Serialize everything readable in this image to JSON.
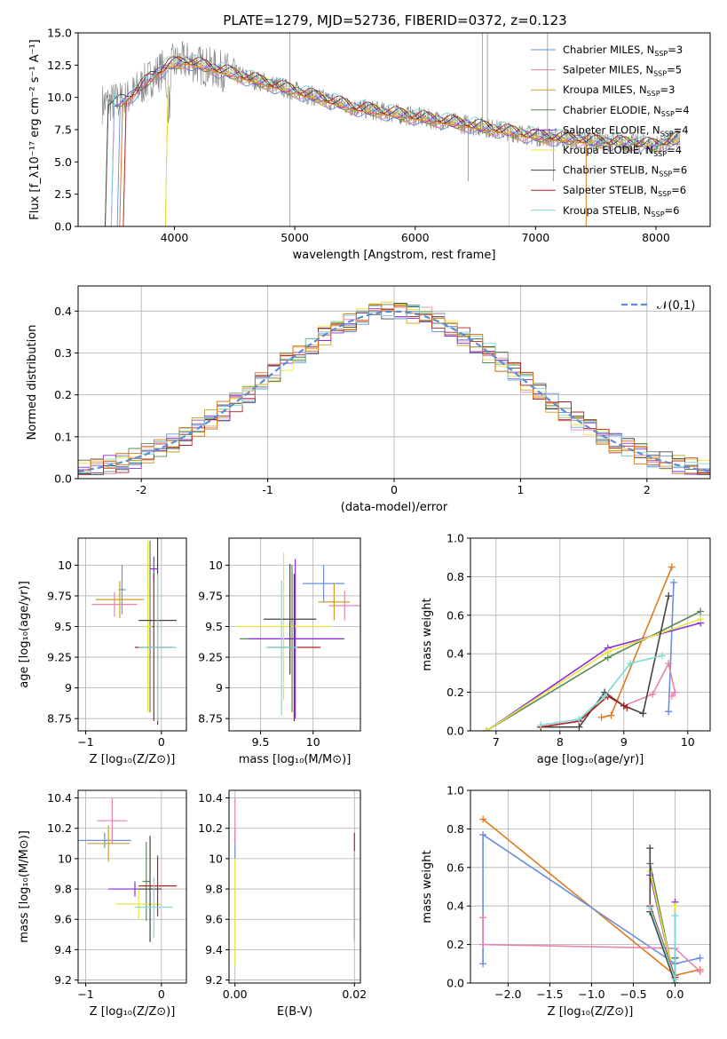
{
  "figure": {
    "title": "PLATE=1279, MJD=52736, FIBERID=0372, z=0.123"
  },
  "colors": {
    "Chabrier MILES": "#6a8fdc",
    "Salpeter MILES": "#e884b0",
    "Kroupa MILES": "#c9a227",
    "Chabrier ELODIE": "#5a8a5a",
    "Salpeter ELODIE": "#8a2be2",
    "Kroupa ELODIE": "#e6e63c",
    "Chabrier STELIB": "#444444",
    "Salpeter STELIB": "#b22222",
    "Kroupa STELIB": "#7fd8d8",
    "data": "#808080",
    "orange": "#e07a1f"
  },
  "chart_data": [
    {
      "id": "spectrum",
      "type": "line",
      "title": "PLATE=1279, MJD=52736, FIBERID=0372, z=0.123",
      "xlabel": "wavelength [Angstrom, rest frame]",
      "ylabel": "Flux [f_λ10⁻¹⁷ erg cm⁻² s⁻¹ A⁻¹]",
      "xlim": [
        3200,
        8450
      ],
      "ylim": [
        0,
        15
      ],
      "xticks": [
        4000,
        5000,
        6000,
        7000,
        8000
      ],
      "yticks": [
        0.0,
        2.5,
        5.0,
        7.5,
        10.0,
        12.5,
        15.0
      ],
      "legend_position": "top-right",
      "legend": [
        {
          "name": "Chabrier MILES",
          "nssp": "3"
        },
        {
          "name": "Salpeter MILES",
          "nssp": "5"
        },
        {
          "name": "Kroupa MILES",
          "nssp": "3"
        },
        {
          "name": "Chabrier ELODIE",
          "nssp": "4"
        },
        {
          "name": "Salpeter ELODIE",
          "nssp": "4"
        },
        {
          "name": "Kroupa ELODIE",
          "nssp": "4"
        },
        {
          "name": "Chabrier STELIB",
          "nssp": "6"
        },
        {
          "name": "Salpeter STELIB",
          "nssp": "6"
        },
        {
          "name": "Kroupa STELIB",
          "nssp": "6"
        }
      ],
      "continuum": {
        "x": [
          3400,
          3600,
          3800,
          3950,
          4100,
          4300,
          4500,
          5000,
          5500,
          6000,
          6500,
          7000,
          7500,
          8000,
          8200
        ],
        "y": [
          9.5,
          9.8,
          11.5,
          12.5,
          12.8,
          12.3,
          11.8,
          10.5,
          9.2,
          8.5,
          7.8,
          7.0,
          6.6,
          6.3,
          6.8
        ]
      }
    },
    {
      "id": "residuals",
      "type": "line",
      "xlabel": "(data-model)/error",
      "ylabel": "Normed distribution",
      "xlim": [
        -2.5,
        2.5
      ],
      "ylim": [
        0,
        0.46
      ],
      "xticks": [
        -2,
        -1,
        0,
        1,
        2
      ],
      "yticks": [
        0.0,
        0.1,
        0.2,
        0.3,
        0.4
      ],
      "legend_position": "top-right",
      "legend": [
        "𝒩(0,1)"
      ]
    },
    {
      "id": "age_vs_Z",
      "type": "scatter",
      "xlabel": "Z [log₁₀(Z/Z⊙)]",
      "ylabel": "age  [log₁₀(age/yr)]",
      "xlim": [
        -1.1,
        0.33
      ],
      "ylim": [
        8.65,
        10.22
      ],
      "xticks": [
        -1,
        0
      ],
      "yticks": [
        8.75,
        9.0,
        9.25,
        9.5,
        9.75,
        10.0
      ],
      "points": [
        {
          "model": "Chabrier MILES",
          "x": -0.52,
          "y": 9.8,
          "xerr": 0.05,
          "yerr": 0.2
        },
        {
          "model": "Salpeter MILES",
          "x": -0.62,
          "y": 9.68,
          "xerr": 0.3,
          "yerr": 0.1
        },
        {
          "model": "Kroupa MILES",
          "x": -0.55,
          "y": 9.72,
          "xerr": 0.32,
          "yerr": 0.15
        },
        {
          "model": "Chabrier ELODIE",
          "x": -0.15,
          "y": 9.5,
          "xerr": 0.05,
          "yerr": 0.7
        },
        {
          "model": "Salpeter ELODIE",
          "x": -0.1,
          "y": 9.97,
          "xerr": 0.05,
          "yerr": 0.1
        },
        {
          "model": "Kroupa ELODIE",
          "x": -0.18,
          "y": 9.5,
          "xerr": 0.05,
          "yerr": 0.7
        },
        {
          "model": "Chabrier STELIB",
          "x": -0.05,
          "y": 9.55,
          "xerr": 0.25,
          "yerr": 0.85
        },
        {
          "model": "Salpeter STELIB",
          "x": -0.1,
          "y": 9.33,
          "xerr": 0.25,
          "yerr": 0.6
        },
        {
          "model": "Kroupa STELIB",
          "x": -0.05,
          "y": 9.33,
          "xerr": 0.25,
          "yerr": 0.6
        }
      ]
    },
    {
      "id": "age_vs_mass",
      "type": "scatter",
      "xlabel": "mass [log₁₀(M/M⊙)]",
      "ylabel": "",
      "xlim": [
        9.2,
        10.45
      ],
      "ylim": [
        8.65,
        10.22
      ],
      "xticks": [
        9.5,
        10.0
      ],
      "yticks": [
        8.75,
        9.0,
        9.25,
        9.5,
        9.75,
        10.0
      ],
      "points": [
        {
          "model": "Chabrier MILES",
          "x": 10.1,
          "y": 9.85,
          "xerr": 0.2,
          "yerr": 0.15
        },
        {
          "model": "Salpeter MILES",
          "x": 10.3,
          "y": 9.67,
          "xerr": 0.15,
          "yerr": 0.12
        },
        {
          "model": "Kroupa MILES",
          "x": 10.2,
          "y": 9.7,
          "xerr": 0.15,
          "yerr": 0.15
        },
        {
          "model": "Chabrier ELODIE",
          "x": 9.8,
          "y": 9.4,
          "xerr": 0.5,
          "yerr": 0.6
        },
        {
          "model": "Salpeter ELODIE",
          "x": 9.83,
          "y": 9.4,
          "xerr": 0.45,
          "yerr": 0.65
        },
        {
          "model": "Kroupa ELODIE",
          "x": 9.72,
          "y": 9.5,
          "xerr": 0.45,
          "yerr": 0.6
        },
        {
          "model": "Chabrier STELIB",
          "x": 9.78,
          "y": 9.56,
          "xerr": 0.25,
          "yerr": 0.45
        },
        {
          "model": "Salpeter STELIB",
          "x": 9.82,
          "y": 9.33,
          "xerr": 0.25,
          "yerr": 0.6
        },
        {
          "model": "Kroupa STELIB",
          "x": 9.7,
          "y": 9.33,
          "xerr": 0.15,
          "yerr": 0.55
        }
      ]
    },
    {
      "id": "massweight_vs_age",
      "type": "line",
      "xlabel": "age  [log₁₀(age/yr)]",
      "ylabel": "mass weight",
      "xlim": [
        6.6,
        10.35
      ],
      "ylim": [
        0,
        1
      ],
      "xticks": [
        7,
        8,
        9,
        10
      ],
      "yticks": [
        0.0,
        0.2,
        0.4,
        0.6,
        0.8,
        1.0
      ],
      "series": [
        {
          "model": "Chabrier MILES",
          "x": [
            9.7,
            9.78,
            9.7
          ],
          "y": [
            0.1,
            0.77,
            0.1
          ]
        },
        {
          "model": "Salpeter MILES",
          "x": [
            9.0,
            9.45,
            9.7,
            9.8,
            9.75
          ],
          "y": [
            0.13,
            0.19,
            0.35,
            0.2,
            0.18
          ]
        },
        {
          "model": "orange",
          "x": [
            8.65,
            8.8,
            9.75
          ],
          "y": [
            0.07,
            0.08,
            0.85
          ]
        },
        {
          "model": "Chabrier ELODIE",
          "x": [
            6.85,
            8.75,
            10.2
          ],
          "y": [
            0.0,
            0.38,
            0.62
          ]
        },
        {
          "model": "Salpeter ELODIE",
          "x": [
            6.85,
            8.75,
            10.2
          ],
          "y": [
            0.0,
            0.43,
            0.56
          ]
        },
        {
          "model": "Kroupa ELODIE",
          "x": [
            6.85,
            8.75,
            10.2
          ],
          "y": [
            0.0,
            0.41,
            0.58
          ]
        },
        {
          "model": "Chabrier STELIB",
          "x": [
            7.7,
            8.3,
            8.7,
            9.0,
            9.3,
            9.7
          ],
          "y": [
            0.02,
            0.02,
            0.2,
            0.13,
            0.09,
            0.7
          ]
        },
        {
          "model": "Salpeter STELIB",
          "x": [
            7.7,
            8.3,
            8.75,
            9.05
          ],
          "y": [
            0.02,
            0.05,
            0.18,
            0.12
          ]
        },
        {
          "model": "Kroupa STELIB",
          "x": [
            7.7,
            8.3,
            8.7,
            9.1,
            9.6
          ],
          "y": [
            0.03,
            0.06,
            0.18,
            0.35,
            0.39
          ]
        }
      ]
    },
    {
      "id": "mass_vs_Z",
      "type": "scatter",
      "xlabel": "Z [log₁₀(Z/Z⊙)]",
      "ylabel": "mass [log₁₀(M/M⊙)]",
      "xlim": [
        -1.1,
        0.33
      ],
      "ylim": [
        9.18,
        10.45
      ],
      "xticks": [
        -1,
        0
      ],
      "yticks": [
        9.2,
        9.4,
        9.6,
        9.8,
        10.0,
        10.2,
        10.4
      ],
      "points": [
        {
          "model": "Chabrier MILES",
          "x": -0.75,
          "y": 10.12,
          "xerr": 0.35,
          "yerr": 0.05
        },
        {
          "model": "Salpeter MILES",
          "x": -0.65,
          "y": 10.25,
          "xerr": 0.2,
          "yerr": 0.15
        },
        {
          "model": "Kroupa MILES",
          "x": -0.7,
          "y": 10.1,
          "xerr": 0.28,
          "yerr": 0.12
        },
        {
          "model": "Chabrier ELODIE",
          "x": -0.2,
          "y": 9.85,
          "xerr": 0.05,
          "yerr": 0.26
        },
        {
          "model": "Salpeter ELODIE",
          "x": -0.35,
          "y": 9.8,
          "xerr": 0.35,
          "yerr": 0.05
        },
        {
          "model": "Kroupa ELODIE",
          "x": -0.3,
          "y": 9.7,
          "xerr": 0.3,
          "yerr": 0.1
        },
        {
          "model": "Chabrier STELIB",
          "x": -0.15,
          "y": 9.8,
          "xerr": 0.15,
          "yerr": 0.35
        },
        {
          "model": "Salpeter STELIB",
          "x": -0.05,
          "y": 9.82,
          "xerr": 0.25,
          "yerr": 0.2
        },
        {
          "model": "Kroupa STELIB",
          "x": -0.1,
          "y": 9.68,
          "xerr": 0.25,
          "yerr": 0.2
        }
      ]
    },
    {
      "id": "mass_vs_ebv",
      "type": "scatter",
      "xlabel": "E(B-V)",
      "ylabel": "",
      "xlim": [
        -0.001,
        0.021
      ],
      "ylim": [
        9.18,
        10.45
      ],
      "xticks": [
        0.0,
        0.02
      ],
      "yticks": [
        9.2,
        9.4,
        9.6,
        9.8,
        10.0,
        10.2,
        10.4
      ],
      "points": [
        {
          "model": "Chabrier MILES",
          "x": 0.0,
          "y": 10.1,
          "xerr": 0,
          "yerr": 0.1
        },
        {
          "model": "Salpeter MILES",
          "x": 0.0,
          "y": 10.25,
          "xerr": 0,
          "yerr": 0.15
        },
        {
          "model": "Kroupa ELODIE",
          "x": 0.0,
          "y": 9.65,
          "xerr": 0,
          "yerr": 0.35
        },
        {
          "model": "Salpeter STELIB",
          "x": 0.02,
          "y": 9.82,
          "xerr": 0,
          "yerr": 0.35
        },
        {
          "model": "Kroupa STELIB",
          "x": 0.02,
          "y": 9.75,
          "xerr": 0,
          "yerr": 0.3
        }
      ]
    },
    {
      "id": "massweight_vs_Z",
      "type": "line",
      "xlabel": "Z [log₁₀(Z/Z⊙)]",
      "ylabel": "mass weight",
      "xlim": [
        -2.45,
        0.42
      ],
      "ylim": [
        0,
        1
      ],
      "xticks": [
        -2.0,
        -1.5,
        -1.0,
        -0.5,
        0.0
      ],
      "yticks": [
        0.0,
        0.2,
        0.4,
        0.6,
        0.8,
        1.0
      ],
      "series": [
        {
          "model": "orange",
          "x": [
            -2.3,
            0.0,
            0.3
          ],
          "y": [
            0.85,
            0.04,
            0.07
          ]
        },
        {
          "model": "Chabrier MILES",
          "x": [
            -2.3,
            -2.3,
            0.0,
            0.3
          ],
          "y": [
            0.1,
            0.77,
            0.1,
            0.13
          ]
        },
        {
          "model": "Salpeter MILES",
          "x": [
            -2.3,
            -2.3,
            0.0,
            0.3
          ],
          "y": [
            0.34,
            0.2,
            0.18,
            0.06
          ]
        },
        {
          "model": "Chabrier ELODIE",
          "x": [
            -0.3,
            0.0
          ],
          "y": [
            0.62,
            0.0
          ]
        },
        {
          "model": "Salpeter ELODIE",
          "x": [
            -0.3,
            0.0,
            0.0
          ],
          "y": [
            0.56,
            0.0,
            0.42
          ]
        },
        {
          "model": "Kroupa ELODIE",
          "x": [
            -0.3,
            0.0,
            0.0
          ],
          "y": [
            0.58,
            0.0,
            0.4
          ]
        },
        {
          "model": "Chabrier STELIB",
          "x": [
            -0.3,
            -0.3,
            0.0,
            0.0
          ],
          "y": [
            0.7,
            0.37,
            0.0,
            0.13
          ]
        },
        {
          "model": "Salpeter STELIB",
          "x": [
            -0.3,
            0.0
          ],
          "y": [
            0.4,
            0.03
          ]
        },
        {
          "model": "Kroupa STELIB",
          "x": [
            -0.3,
            0.0,
            0.0
          ],
          "y": [
            0.39,
            0.02,
            0.35
          ]
        }
      ]
    }
  ]
}
